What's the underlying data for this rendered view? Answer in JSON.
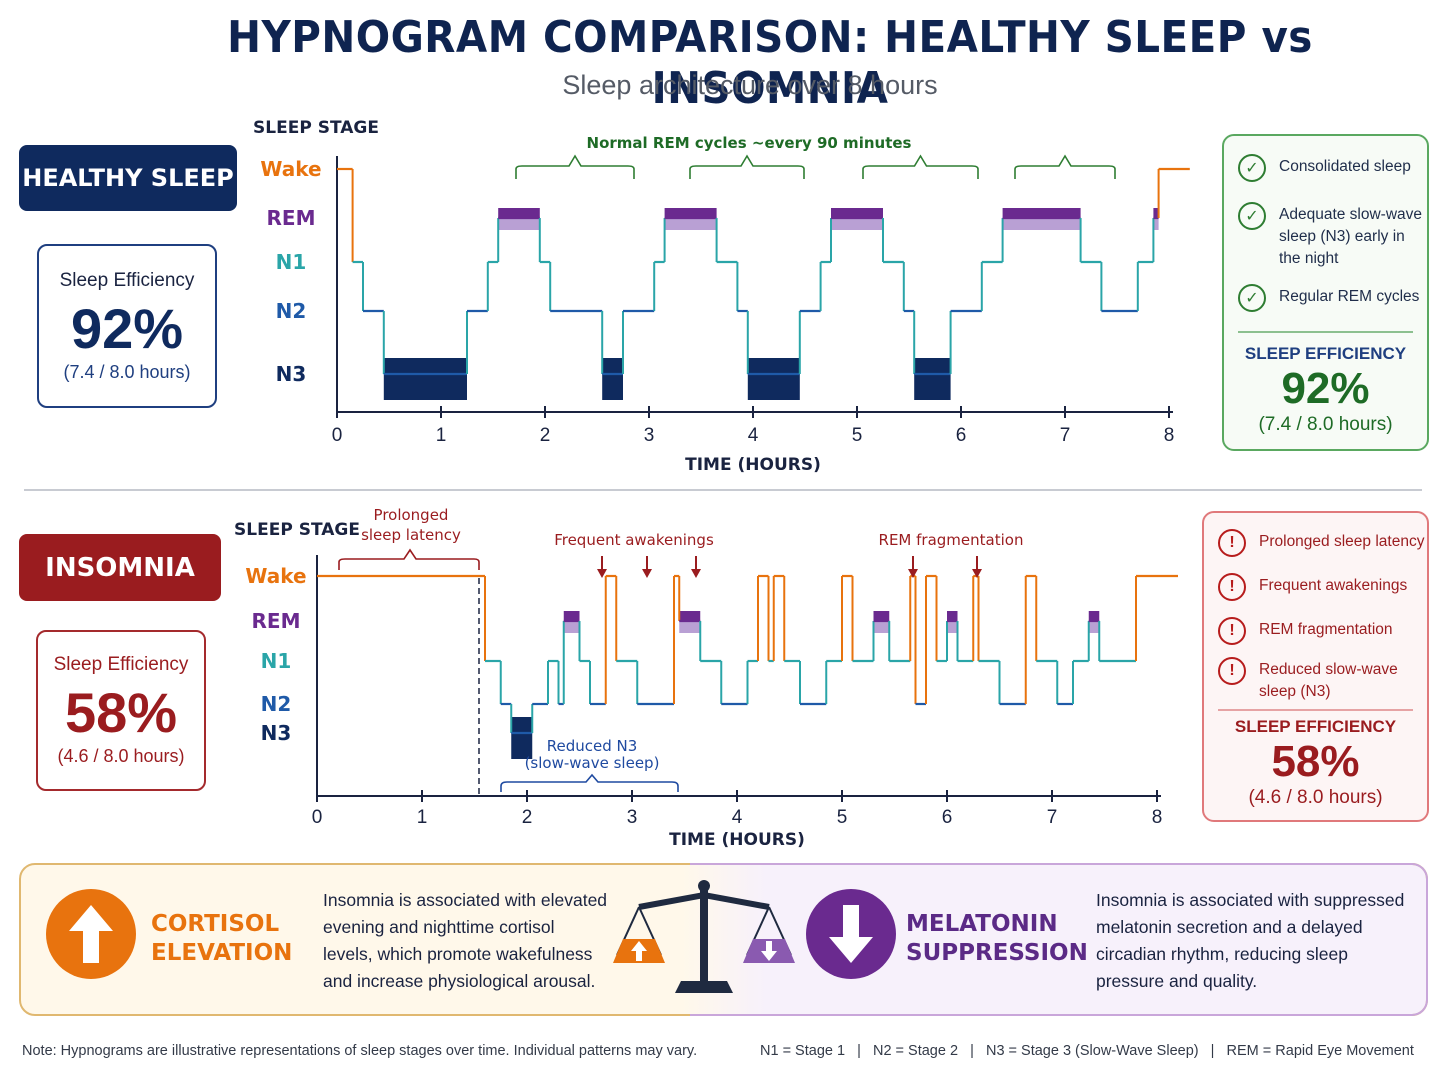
{
  "title": "HYPNOGRAM COMPARISON: HEALTHY SLEEP vs INSOMNIA",
  "subtitle": "Sleep architecture over 8 hours",
  "stage_axis_title": "SLEEP STAGE",
  "time_axis_title": "TIME (HOURS)",
  "stages": [
    "Wake",
    "REM",
    "N1",
    "N2",
    "N3"
  ],
  "colors": {
    "wake": "#e8730e",
    "rem": "#6a2a8f",
    "n1": "#2aa5a8",
    "n2": "#1f5aa8",
    "n3": "#0f2a5e",
    "healthy_accent": "#2e7d32",
    "insomnia_accent": "#9a1c1f"
  },
  "healthy": {
    "tag": "HEALTHY SLEEP",
    "efficiency_label": "Sleep Efficiency",
    "efficiency_value": "92%",
    "efficiency_detail": "(7.4 / 8.0 hours)",
    "annotation_rem": "Normal REM cycles ~every 90 minutes",
    "panel": {
      "items": [
        "Consolidated sleep",
        "Adequate slow-wave sleep (N3) early in the night",
        "Regular REM cycles"
      ],
      "label": "SLEEP EFFICIENCY",
      "value": "92%",
      "detail": "(7.4 / 8.0 hours)"
    }
  },
  "insomnia": {
    "tag": "INSOMNIA",
    "efficiency_label": "Sleep Efficiency",
    "efficiency_value": "58%",
    "efficiency_detail": "(4.6 / 8.0 hours)",
    "annotation_latency_1": "Prolonged",
    "annotation_latency_2": "sleep latency",
    "annotation_awakenings": "Frequent awakenings",
    "annotation_rem_frag": "REM fragmentation",
    "annotation_n3_1": "Reduced N3",
    "annotation_n3_2": "(slow-wave sleep)",
    "panel": {
      "items": [
        "Prolonged sleep latency",
        "Frequent awakenings",
        "REM fragmentation",
        "Reduced slow-wave sleep (N3)"
      ],
      "label": "SLEEP EFFICIENCY",
      "value": "58%",
      "detail": "(4.6 / 8.0 hours)"
    }
  },
  "chart_data": [
    {
      "type": "line",
      "title": "HEALTHY SLEEP",
      "xlabel": "TIME (HOURS)",
      "ylabel": "SLEEP STAGE",
      "xlim": [
        0,
        8
      ],
      "x_ticks": [
        0,
        1,
        2,
        3,
        4,
        5,
        6,
        7,
        8
      ],
      "y_categories": [
        "Wake",
        "REM",
        "N1",
        "N2",
        "N3"
      ],
      "segments": [
        [
          "Wake",
          0.0,
          0.15
        ],
        [
          "N1",
          0.15,
          0.25
        ],
        [
          "N2",
          0.25,
          0.45
        ],
        [
          "N3",
          0.45,
          1.25
        ],
        [
          "N2",
          1.25,
          1.45
        ],
        [
          "N1",
          1.45,
          1.55
        ],
        [
          "REM",
          1.55,
          1.95
        ],
        [
          "N1",
          1.95,
          2.05
        ],
        [
          "N2",
          2.05,
          2.55
        ],
        [
          "N3",
          2.55,
          2.75
        ],
        [
          "N2",
          2.75,
          3.05
        ],
        [
          "N1",
          3.05,
          3.15
        ],
        [
          "REM",
          3.15,
          3.65
        ],
        [
          "N1",
          3.65,
          3.85
        ],
        [
          "N2",
          3.85,
          3.95
        ],
        [
          "N3",
          3.95,
          4.45
        ],
        [
          "N2",
          4.45,
          4.65
        ],
        [
          "N1",
          4.65,
          4.75
        ],
        [
          "REM",
          4.75,
          5.25
        ],
        [
          "N1",
          5.25,
          5.45
        ],
        [
          "N2",
          5.45,
          5.55
        ],
        [
          "N3",
          5.55,
          5.9
        ],
        [
          "N2",
          5.9,
          6.2
        ],
        [
          "N1",
          6.2,
          6.4
        ],
        [
          "REM",
          6.4,
          7.15
        ],
        [
          "N1",
          7.15,
          7.35
        ],
        [
          "N2",
          7.35,
          7.7
        ],
        [
          "N1",
          7.7,
          7.85
        ],
        [
          "REM",
          7.85,
          7.9
        ],
        [
          "Wake",
          7.9,
          8.2
        ]
      ]
    },
    {
      "type": "line",
      "title": "INSOMNIA",
      "xlabel": "TIME (HOURS)",
      "ylabel": "SLEEP STAGE",
      "xlim": [
        0,
        8
      ],
      "x_ticks": [
        0,
        1,
        2,
        3,
        4,
        5,
        6,
        7,
        8
      ],
      "y_categories": [
        "Wake",
        "REM",
        "N1",
        "N2",
        "N3"
      ],
      "segments": [
        [
          "Wake",
          0.0,
          1.6
        ],
        [
          "N1",
          1.6,
          1.75
        ],
        [
          "N2",
          1.75,
          1.85
        ],
        [
          "N3",
          1.85,
          2.05
        ],
        [
          "N2",
          2.05,
          2.2
        ],
        [
          "N1",
          2.2,
          2.3
        ],
        [
          "N2",
          2.3,
          2.35
        ],
        [
          "REM",
          2.35,
          2.5
        ],
        [
          "N1",
          2.5,
          2.6
        ],
        [
          "N2",
          2.6,
          2.75
        ],
        [
          "Wake",
          2.75,
          2.85
        ],
        [
          "N1",
          2.85,
          3.05
        ],
        [
          "N2",
          3.05,
          3.4
        ],
        [
          "Wake",
          3.4,
          3.45
        ],
        [
          "REM",
          3.45,
          3.65
        ],
        [
          "N1",
          3.65,
          3.85
        ],
        [
          "N2",
          3.85,
          4.1
        ],
        [
          "N1",
          4.1,
          4.2
        ],
        [
          "Wake",
          4.2,
          4.3
        ],
        [
          "N1",
          4.3,
          4.35
        ],
        [
          "Wake",
          4.35,
          4.45
        ],
        [
          "N1",
          4.45,
          4.6
        ],
        [
          "N2",
          4.6,
          4.85
        ],
        [
          "N1",
          4.85,
          5.0
        ],
        [
          "Wake",
          5.0,
          5.1
        ],
        [
          "N1",
          5.1,
          5.3
        ],
        [
          "REM",
          5.3,
          5.45
        ],
        [
          "N1",
          5.45,
          5.65
        ],
        [
          "Wake",
          5.65,
          5.7
        ],
        [
          "N2",
          5.7,
          5.8
        ],
        [
          "Wake",
          5.8,
          5.9
        ],
        [
          "N1",
          5.9,
          6.0
        ],
        [
          "REM",
          6.0,
          6.1
        ],
        [
          "N1",
          6.1,
          6.25
        ],
        [
          "Wake",
          6.25,
          6.3
        ],
        [
          "N1",
          6.3,
          6.5
        ],
        [
          "N2",
          6.5,
          6.75
        ],
        [
          "Wake",
          6.75,
          6.85
        ],
        [
          "N1",
          6.85,
          7.05
        ],
        [
          "N2",
          7.05,
          7.2
        ],
        [
          "N1",
          7.2,
          7.35
        ],
        [
          "REM",
          7.35,
          7.45
        ],
        [
          "N1",
          7.45,
          7.8
        ],
        [
          "Wake",
          7.8,
          8.2
        ]
      ]
    }
  ],
  "cortisol": {
    "title_1": "CORTISOL",
    "title_2": "ELEVATION",
    "text": "Insomnia is associated with elevated evening and nighttime cortisol levels, which promote wakefulness and increase physiological arousal."
  },
  "melatonin": {
    "title_1": "MELATONIN",
    "title_2": "SUPPRESSION",
    "text": "Insomnia is associated with suppressed melatonin secretion and a delayed circadian rhythm, reducing sleep pressure and quality."
  },
  "footnote": "Note: Hypnograms are illustrative representations of sleep stages over time. Individual patterns may vary.",
  "legend": "N1 = Stage 1   |   N2 = Stage 2   |   N3 = Stage 3 (Slow-Wave Sleep)   |   REM = Rapid Eye Movement",
  "icons": {
    "check": "check-circle-icon",
    "alert": "alert-circle-icon",
    "up_arrow": "arrow-up-icon",
    "down_arrow": "arrow-down-icon",
    "scale": "balance-scale-icon"
  }
}
